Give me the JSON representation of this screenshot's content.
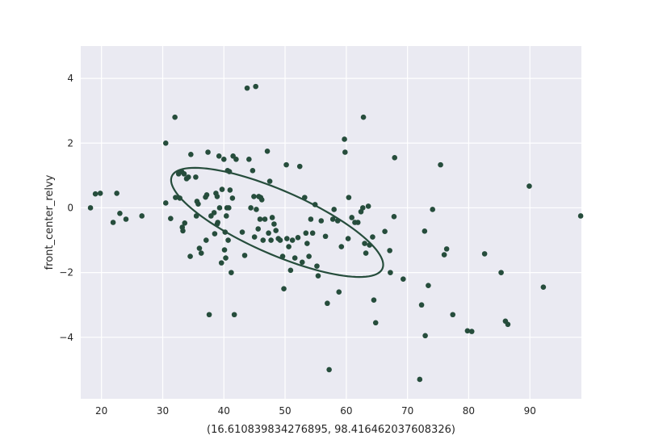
{
  "chart_data": {
    "type": "scatter",
    "title": "",
    "xlabel": "(16.610839834276895, 98.416462037608326)",
    "ylabel": "front_center_relvy",
    "xlim": [
      16.610839834276895,
      98.41646203760833
    ],
    "ylim": [
      -5.9,
      5.0
    ],
    "xticks": [
      20,
      30,
      40,
      50,
      60,
      70,
      80,
      90
    ],
    "yticks": [
      -4,
      -2,
      0,
      2,
      4
    ],
    "grid": true,
    "colors": {
      "background": "#EAEAF2",
      "grid": "#FFFFFF",
      "marker": "#264D3C",
      "ellipse": "#264D3C"
    },
    "series": [
      {
        "name": "",
        "points": [
          [
            18.2,
            0.0
          ],
          [
            19.0,
            0.43
          ],
          [
            19.8,
            0.45
          ],
          [
            21.9,
            -0.45
          ],
          [
            22.5,
            0.45
          ],
          [
            23.0,
            -0.17
          ],
          [
            24.0,
            -0.35
          ],
          [
            26.6,
            -0.25
          ],
          [
            30.5,
            2.0
          ],
          [
            30.5,
            0.15
          ],
          [
            31.3,
            -0.33
          ],
          [
            32.0,
            2.8
          ],
          [
            32.1,
            0.32
          ],
          [
            32.6,
            1.05
          ],
          [
            32.8,
            0.3
          ],
          [
            33.1,
            1.12
          ],
          [
            33.2,
            -0.6
          ],
          [
            33.3,
            -0.71
          ],
          [
            33.5,
            1.05
          ],
          [
            33.6,
            -0.47
          ],
          [
            33.9,
            0.9
          ],
          [
            34.2,
            0.95
          ],
          [
            34.5,
            -1.5
          ],
          [
            34.6,
            1.65
          ],
          [
            35.4,
            0.95
          ],
          [
            35.5,
            -0.25
          ],
          [
            35.6,
            0.2
          ],
          [
            35.8,
            0.12
          ],
          [
            36.0,
            -1.25
          ],
          [
            36.3,
            -1.4
          ],
          [
            37.0,
            0.33
          ],
          [
            37.1,
            -1.0
          ],
          [
            37.2,
            0.4
          ],
          [
            37.4,
            1.72
          ],
          [
            37.6,
            -3.3
          ],
          [
            37.9,
            -0.25
          ],
          [
            38.4,
            -0.15
          ],
          [
            38.5,
            -0.8
          ],
          [
            38.7,
            0.45
          ],
          [
            38.9,
            0.35
          ],
          [
            38.9,
            -0.5
          ],
          [
            39.0,
            -0.45
          ],
          [
            39.2,
            1.6
          ],
          [
            39.3,
            0.0
          ],
          [
            39.6,
            -1.7
          ],
          [
            39.7,
            0.57
          ],
          [
            40.0,
            1.5
          ],
          [
            40.1,
            -1.3
          ],
          [
            40.2,
            -0.75
          ],
          [
            40.3,
            -1.55
          ],
          [
            40.4,
            -0.25
          ],
          [
            40.5,
            0.0
          ],
          [
            40.6,
            1.15
          ],
          [
            40.7,
            -1.0
          ],
          [
            40.8,
            0.0
          ],
          [
            40.9,
            1.12
          ],
          [
            41.0,
            0.55
          ],
          [
            41.2,
            -2.0
          ],
          [
            41.4,
            0.3
          ],
          [
            41.5,
            1.6
          ],
          [
            41.7,
            -3.3
          ],
          [
            42.0,
            1.5
          ],
          [
            43.0,
            -0.75
          ],
          [
            43.4,
            -1.47
          ],
          [
            43.8,
            3.7
          ],
          [
            44.1,
            1.5
          ],
          [
            44.4,
            0.0
          ],
          [
            44.7,
            1.15
          ],
          [
            44.9,
            0.35
          ],
          [
            45.0,
            -0.9
          ],
          [
            45.2,
            3.75
          ],
          [
            45.3,
            -0.05
          ],
          [
            45.6,
            -0.65
          ],
          [
            45.7,
            0.35
          ],
          [
            45.9,
            -0.35
          ],
          [
            46.0,
            0.32
          ],
          [
            46.2,
            0.25
          ],
          [
            46.4,
            -1.0
          ],
          [
            46.7,
            -0.35
          ],
          [
            47.1,
            1.75
          ],
          [
            47.3,
            -0.78
          ],
          [
            47.5,
            0.82
          ],
          [
            47.7,
            -1.0
          ],
          [
            47.9,
            -0.3
          ],
          [
            48.2,
            -0.5
          ],
          [
            48.5,
            -0.7
          ],
          [
            48.9,
            -0.95
          ],
          [
            49.2,
            -1.0
          ],
          [
            49.6,
            -1.5
          ],
          [
            49.8,
            -2.5
          ],
          [
            50.2,
            1.33
          ],
          [
            50.3,
            -0.95
          ],
          [
            50.6,
            -1.2
          ],
          [
            50.9,
            -1.93
          ],
          [
            51.2,
            -1.0
          ],
          [
            51.6,
            -1.55
          ],
          [
            52.1,
            -0.92
          ],
          [
            52.4,
            1.28
          ],
          [
            52.8,
            -1.68
          ],
          [
            53.2,
            0.32
          ],
          [
            53.4,
            -0.78
          ],
          [
            53.6,
            -1.1
          ],
          [
            53.9,
            -1.5
          ],
          [
            54.2,
            -0.35
          ],
          [
            54.5,
            -0.78
          ],
          [
            54.9,
            0.1
          ],
          [
            55.2,
            -1.8
          ],
          [
            55.4,
            -2.1
          ],
          [
            55.9,
            -0.4
          ],
          [
            56.6,
            -0.88
          ],
          [
            56.9,
            -2.95
          ],
          [
            57.2,
            -5.0
          ],
          [
            57.8,
            -0.35
          ],
          [
            58.0,
            -0.05
          ],
          [
            58.6,
            -0.4
          ],
          [
            58.8,
            -2.6
          ],
          [
            59.2,
            -1.2
          ],
          [
            59.7,
            2.12
          ],
          [
            59.8,
            1.72
          ],
          [
            60.3,
            -0.95
          ],
          [
            60.4,
            0.32
          ],
          [
            60.9,
            -0.3
          ],
          [
            61.4,
            -0.45
          ],
          [
            61.9,
            -0.45
          ],
          [
            62.4,
            -0.12
          ],
          [
            62.7,
            0.0
          ],
          [
            62.8,
            2.8
          ],
          [
            63.0,
            -1.1
          ],
          [
            63.2,
            -1.4
          ],
          [
            63.6,
            0.05
          ],
          [
            63.8,
            -1.15
          ],
          [
            64.3,
            -0.9
          ],
          [
            64.5,
            -2.85
          ],
          [
            64.8,
            -3.55
          ],
          [
            66.3,
            -0.73
          ],
          [
            67.1,
            -1.32
          ],
          [
            67.2,
            -2.0
          ],
          [
            67.9,
            1.55
          ],
          [
            67.8,
            -0.27
          ],
          [
            69.3,
            -2.2
          ],
          [
            72.0,
            -5.3
          ],
          [
            72.3,
            -3.0
          ],
          [
            72.8,
            -0.72
          ],
          [
            72.9,
            -3.95
          ],
          [
            73.4,
            -2.4
          ],
          [
            74.1,
            -0.05
          ],
          [
            75.4,
            1.33
          ],
          [
            76.0,
            -1.45
          ],
          [
            76.4,
            -1.27
          ],
          [
            77.4,
            -3.3
          ],
          [
            79.8,
            -3.8
          ],
          [
            80.5,
            -3.82
          ],
          [
            82.6,
            -1.42
          ],
          [
            85.3,
            -2.0
          ],
          [
            86.0,
            -3.5
          ],
          [
            86.4,
            -3.6
          ],
          [
            89.9,
            0.67
          ],
          [
            92.2,
            -2.45
          ],
          [
            98.3,
            -0.25
          ]
        ]
      }
    ],
    "ellipse": {
      "center": [
        48.7,
        -0.45
      ],
      "semi_major": 17.38,
      "semi_minor": 1.06,
      "slope": -0.0758
    }
  }
}
